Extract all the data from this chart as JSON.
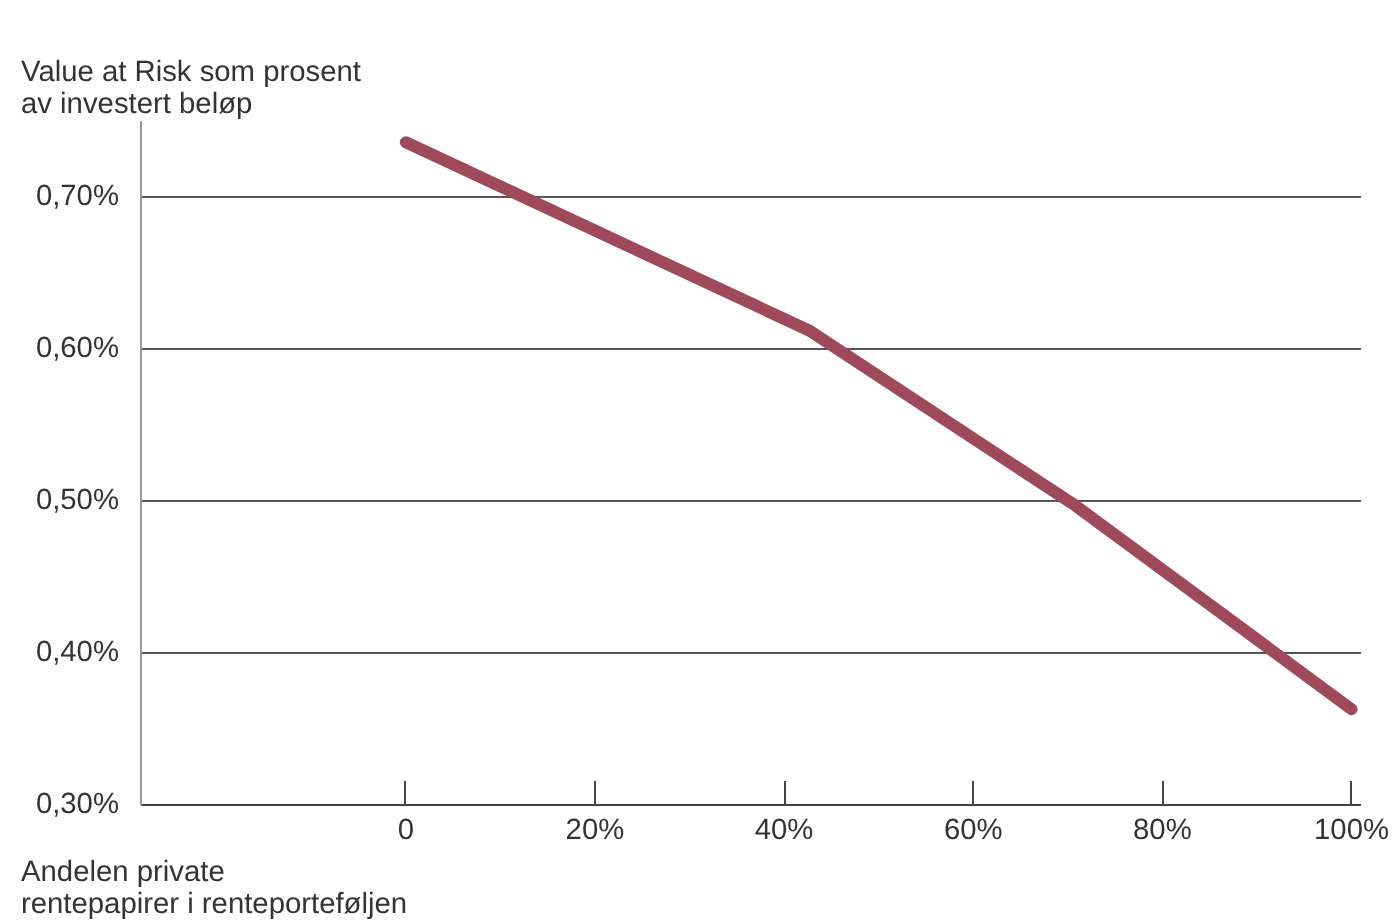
{
  "chart_data": {
    "type": "line",
    "ylabel": "Value at Risk som prosent av investert beløp",
    "xlabel": "Andelen private rentepapirer i renteporteføljen",
    "x": [
      0,
      42.7,
      70.8,
      100
    ],
    "series": [
      {
        "color": "#9e4a5c",
        "values": [
          0.736,
          0.612,
          0.497,
          0.363
        ]
      }
    ],
    "xlim": [
      -28,
      101
    ],
    "ylim": [
      0.3,
      0.75
    ],
    "xticks": [
      {
        "value": 0,
        "label": "0"
      },
      {
        "value": 20,
        "label": "20%"
      },
      {
        "value": 40,
        "label": "40%"
      },
      {
        "value": 60,
        "label": "60%"
      },
      {
        "value": 80,
        "label": "80%"
      },
      {
        "value": 100,
        "label": "100%"
      }
    ],
    "yticks": [
      {
        "value": 0.3,
        "label": "0,30%"
      },
      {
        "value": 0.4,
        "label": "0,40%"
      },
      {
        "value": 0.5,
        "label": "0,50%"
      },
      {
        "value": 0.6,
        "label": "0,60%"
      },
      {
        "value": 0.7,
        "label": "0,70%"
      }
    ],
    "grid": "y",
    "marker": "none",
    "line_style": "solid"
  }
}
